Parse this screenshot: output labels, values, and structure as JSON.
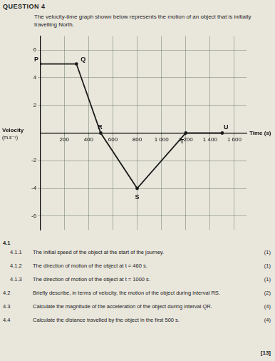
{
  "header": "QUESTION 4",
  "intro": "The velocity-time graph shown below represents the motion of an object that is initially travelling North.",
  "chart_data": {
    "type": "line",
    "x": [
      0,
      300,
      500,
      800,
      1200,
      1500
    ],
    "values": [
      5,
      5,
      0,
      -4,
      0,
      0
    ],
    "point_labels": [
      "P",
      "Q",
      "R",
      "S",
      "T",
      "U"
    ],
    "xlabel": "Time (s)",
    "ylabel": "Velocity (m.s⁻¹)",
    "xlim": [
      0,
      1700
    ],
    "ylim": [
      -7,
      7
    ],
    "xticks": [
      200,
      400,
      600,
      800,
      {
        "value": 1000,
        "label": "1 000"
      },
      {
        "value": 1200,
        "label": "1 200"
      },
      {
        "value": 1400,
        "label": "1 400"
      },
      {
        "value": 1600,
        "label": "1 600"
      }
    ],
    "yticks": [
      -6,
      -4,
      -2,
      2,
      4,
      6
    ],
    "grid": true,
    "color": "#1a1a1a"
  },
  "section": "4.1",
  "questions": [
    {
      "number": "4.1.1",
      "text": "The initial speed of the object at the start of the journey.",
      "marks": "(1)"
    },
    {
      "number": "4.1.2",
      "text": "The direction of motion of the object at t = 460 s.",
      "marks": "(1)"
    },
    {
      "number": "4.1.3",
      "text": "The direction of motion of the object at t = 1000 s.",
      "marks": "(1)"
    },
    {
      "number": "4.2",
      "text": "Briefly describe, in terms of velocity, the motion of the object during interval RS.",
      "marks": "(2)"
    },
    {
      "number": "4.3",
      "text": "Calculate the magnitude of the acceleration of the object during interval QR.",
      "marks": "(4)"
    },
    {
      "number": "4.4",
      "text": "Calculate the distance travelled by the object in the first 500 s.",
      "marks": "(4)"
    }
  ],
  "total": "[13]"
}
